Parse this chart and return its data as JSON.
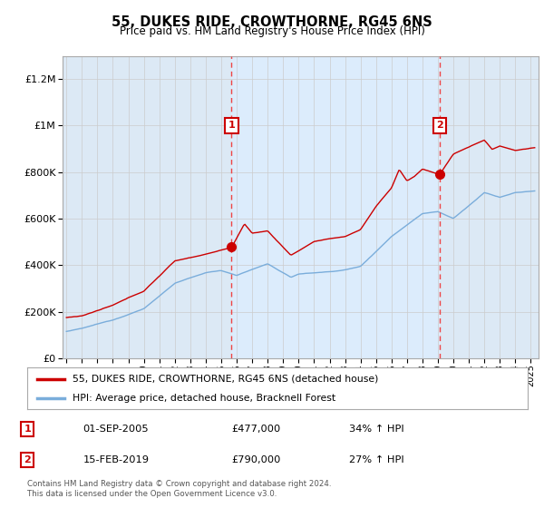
{
  "title": "55, DUKES RIDE, CROWTHORNE, RG45 6NS",
  "subtitle": "Price paid vs. HM Land Registry's House Price Index (HPI)",
  "legend_line1": "55, DUKES RIDE, CROWTHORNE, RG45 6NS (detached house)",
  "legend_line2": "HPI: Average price, detached house, Bracknell Forest",
  "footnote": "Contains HM Land Registry data © Crown copyright and database right 2024.\nThis data is licensed under the Open Government Licence v3.0.",
  "sale1_label": "1",
  "sale1_date": "01-SEP-2005",
  "sale1_price": 477000,
  "sale1_pct": "34% ↑ HPI",
  "sale2_label": "2",
  "sale2_date": "15-FEB-2019",
  "sale2_price": 790000,
  "sale2_pct": "27% ↑ HPI",
  "sale1_year": 2005.67,
  "sale2_year": 2019.12,
  "ylim_max": 1300000,
  "xlim_start": 1994.75,
  "xlim_end": 2025.5,
  "bg_color": "#dce9f5",
  "plot_bg": "#ffffff",
  "red_line_color": "#cc0000",
  "blue_line_color": "#7aaddb",
  "marker_box_color": "#cc0000",
  "vline_color": "#ee4444",
  "grid_color": "#cccccc",
  "shade_color": "#ddeeff"
}
